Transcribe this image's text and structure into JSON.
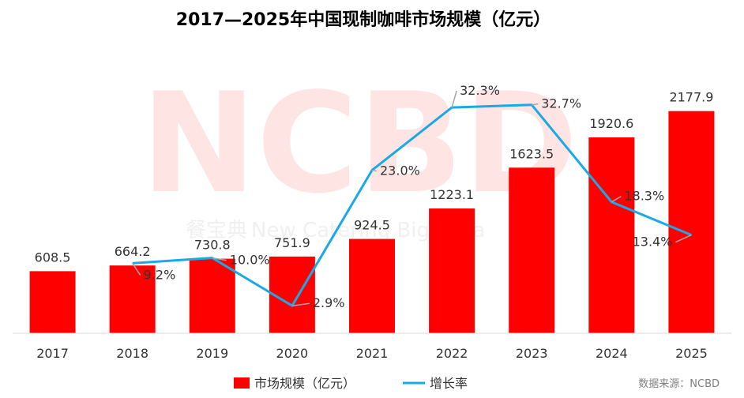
{
  "title": "2017—2025年中国现制咖啡市场规模（亿元）",
  "watermark": {
    "logo": "NCBD",
    "text_cn": "餐宝典",
    "text_en": "New Catering Big Data"
  },
  "source": "数据来源：NCBD",
  "colors": {
    "bar": "#ff0000",
    "line": "#1aa9e8",
    "label": "#333333",
    "leader": "#a6a6a6"
  },
  "chart_data": {
    "type": "bar",
    "categories": [
      "2017",
      "2018",
      "2019",
      "2020",
      "2021",
      "2022",
      "2023",
      "2024",
      "2025"
    ],
    "series": [
      {
        "name": "市场规模（亿元）",
        "type": "bar",
        "axis": "left",
        "values": [
          608.5,
          664.2,
          730.8,
          751.9,
          924.5,
          1223.1,
          1623.5,
          1920.6,
          2177.9
        ],
        "labels": [
          "608.5",
          "664.2",
          "730.8",
          "751.9",
          "924.5",
          "1223.1",
          "1623.5",
          "1920.6",
          "2177.9"
        ]
      },
      {
        "name": "增长率",
        "type": "line",
        "axis": "right",
        "values": [
          null,
          9.2,
          10.0,
          2.9,
          23.0,
          32.3,
          32.7,
          18.3,
          13.4
        ],
        "labels": [
          "",
          "9.2%",
          "10.0%",
          "2.9%",
          "23.0%",
          "32.3%",
          "32.7%",
          "18.3%",
          "13.4%"
        ]
      }
    ],
    "ylim_left": [
      0,
      2400
    ],
    "ylim_right": [
      0,
      37
    ],
    "grid": false,
    "legend": "bottom"
  }
}
